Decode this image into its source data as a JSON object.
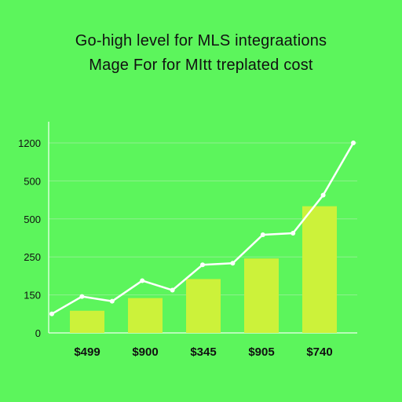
{
  "colors": {
    "background": "#5cf55c",
    "bar": "#ccf23a",
    "line": "#ffffff",
    "grid": "#8ff08f",
    "axis": "#d6ffd6",
    "text": "#111111"
  },
  "chart_data": {
    "type": "bar",
    "title": "Go-high level for MLS integraations",
    "subtitle": "Mage For for MItt treplated cost",
    "yticks": [
      "1200",
      "500",
      "500",
      "250",
      "150",
      "0"
    ],
    "categories": [
      "$499",
      "$900",
      "$345",
      "$905",
      "$740"
    ],
    "values": [
      140,
      220,
      340,
      470,
      800
    ],
    "line_series": {
      "values": [
        120,
        230,
        200,
        330,
        270,
        430,
        440,
        620,
        630,
        870,
        1200
      ]
    },
    "ylim": [
      0,
      1200
    ],
    "grid": true,
    "legend": "none"
  }
}
